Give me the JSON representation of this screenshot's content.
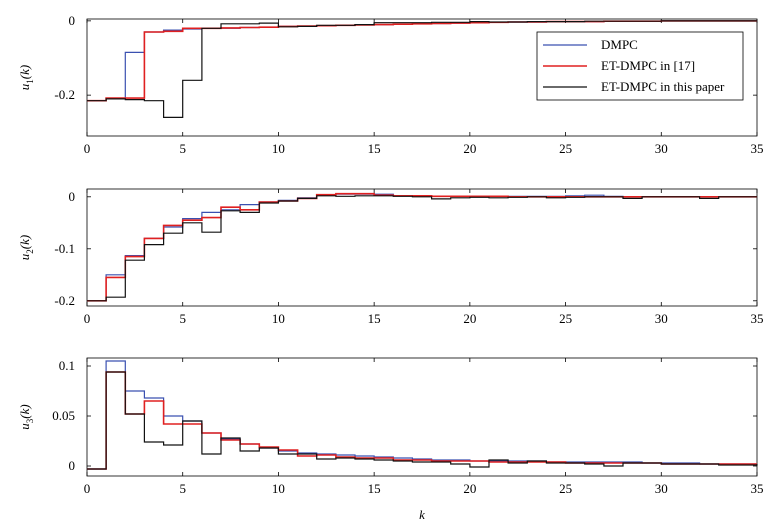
{
  "chart_data": [
    {
      "type": "line",
      "ylabel_main": "u",
      "ylabel_sub": "1",
      "ylabel_arg": "(k)",
      "xlim": [
        0,
        35
      ],
      "ylim": [
        -0.31,
        0.005
      ],
      "xticks": [
        "0",
        "5",
        "10",
        "15",
        "20",
        "25",
        "30",
        "35"
      ],
      "yticks": [
        {
          "v": 0,
          "label": "0"
        },
        {
          "v": -0.2,
          "label": "-0.2"
        }
      ],
      "legend": {
        "position": "top-right",
        "entries": [
          "DMPC",
          "ET-DMPC in [17]",
          "ET-DMPC in this paper"
        ]
      },
      "series": [
        {
          "name": "DMPC",
          "color": "#3a50b0",
          "step": true,
          "x": [
            0,
            1,
            2,
            3,
            4,
            5,
            6,
            7,
            8,
            9,
            10,
            11,
            12,
            13,
            14,
            15,
            16,
            17,
            18,
            19,
            20,
            21,
            22,
            23,
            24,
            25,
            26,
            27,
            28,
            29,
            30,
            31,
            32,
            33,
            34,
            35
          ],
          "y": [
            -0.215,
            -0.21,
            -0.085,
            -0.03,
            -0.025,
            -0.022,
            -0.02,
            -0.02,
            -0.018,
            -0.017,
            -0.015,
            -0.014,
            -0.013,
            -0.012,
            -0.011,
            -0.01,
            -0.009,
            -0.008,
            -0.007,
            -0.006,
            -0.005,
            -0.004,
            -0.003,
            -0.003,
            -0.002,
            -0.002,
            -0.002,
            -0.001,
            -0.001,
            -0.001,
            0,
            0,
            0,
            0,
            0,
            0
          ]
        },
        {
          "name": "ET-DMPC in [17]",
          "color": "#e02020",
          "step": true,
          "x": [
            0,
            1,
            2,
            3,
            4,
            5,
            6,
            7,
            8,
            9,
            10,
            11,
            12,
            13,
            14,
            15,
            16,
            17,
            18,
            19,
            20,
            21,
            22,
            23,
            24,
            25,
            26,
            27,
            28,
            29,
            30,
            31,
            32,
            33,
            34,
            35
          ],
          "y": [
            -0.215,
            -0.208,
            -0.208,
            -0.03,
            -0.028,
            -0.02,
            -0.02,
            -0.019,
            -0.018,
            -0.017,
            -0.015,
            -0.014,
            -0.013,
            -0.012,
            -0.011,
            -0.01,
            -0.009,
            -0.008,
            -0.007,
            -0.006,
            -0.005,
            -0.004,
            -0.003,
            -0.003,
            -0.002,
            -0.002,
            -0.002,
            -0.001,
            -0.001,
            -0.001,
            0,
            0,
            0,
            0,
            0,
            0
          ]
        },
        {
          "name": "ET-DMPC in this paper",
          "color": "#111111",
          "step": true,
          "x": [
            0,
            1,
            2,
            3,
            4,
            5,
            6,
            7,
            8,
            9,
            10,
            11,
            12,
            13,
            14,
            15,
            16,
            17,
            18,
            19,
            20,
            21,
            22,
            23,
            24,
            25,
            26,
            27,
            28,
            29,
            30,
            31,
            32,
            33,
            34,
            35
          ],
          "y": [
            -0.215,
            -0.21,
            -0.212,
            -0.215,
            -0.26,
            -0.16,
            -0.02,
            -0.008,
            -0.008,
            -0.006,
            -0.016,
            -0.015,
            -0.012,
            -0.012,
            -0.01,
            -0.005,
            -0.005,
            -0.005,
            -0.004,
            -0.004,
            -0.002,
            -0.003,
            -0.003,
            -0.002,
            -0.002,
            -0.002,
            -0.001,
            -0.001,
            -0.001,
            -0.001,
            0,
            0,
            0,
            0,
            0,
            0
          ]
        }
      ]
    },
    {
      "type": "line",
      "ylabel_main": "u",
      "ylabel_sub": "2",
      "ylabel_arg": "(k)",
      "xlim": [
        0,
        35
      ],
      "ylim": [
        -0.21,
        0.015
      ],
      "xticks": [
        "0",
        "5",
        "10",
        "15",
        "20",
        "25",
        "30",
        "35"
      ],
      "yticks": [
        {
          "v": 0,
          "label": "0"
        },
        {
          "v": -0.1,
          "label": "-0.1"
        },
        {
          "v": -0.2,
          "label": "-0.2"
        }
      ],
      "series": [
        {
          "name": "DMPC",
          "color": "#3a50b0",
          "step": true,
          "x": [
            0,
            1,
            2,
            3,
            4,
            5,
            6,
            7,
            8,
            9,
            10,
            11,
            12,
            13,
            14,
            15,
            16,
            17,
            18,
            19,
            20,
            21,
            22,
            23,
            24,
            25,
            26,
            27,
            28,
            29,
            30,
            31,
            32,
            33,
            34,
            35
          ],
          "y": [
            -0.2,
            -0.15,
            -0.113,
            -0.08,
            -0.058,
            -0.042,
            -0.03,
            -0.025,
            -0.015,
            -0.01,
            -0.007,
            -0.002,
            0.004,
            0.005,
            0.005,
            0.005,
            0.002,
            0.002,
            0.001,
            0.001,
            0.001,
            0.001,
            0.001,
            0.001,
            0.001,
            0.002,
            0.003,
            0.001,
            0,
            0,
            0,
            0,
            0,
            0,
            0,
            0
          ]
        },
        {
          "name": "ET-DMPC in [17]",
          "color": "#e02020",
          "step": true,
          "x": [
            0,
            1,
            2,
            3,
            4,
            5,
            6,
            7,
            8,
            9,
            10,
            11,
            12,
            13,
            14,
            15,
            16,
            17,
            18,
            19,
            20,
            21,
            22,
            23,
            24,
            25,
            26,
            27,
            28,
            29,
            30,
            31,
            32,
            33,
            34,
            35
          ],
          "y": [
            -0.2,
            -0.155,
            -0.115,
            -0.08,
            -0.055,
            -0.045,
            -0.04,
            -0.02,
            -0.025,
            -0.01,
            -0.008,
            -0.003,
            0.004,
            0.006,
            0.006,
            0.003,
            0.002,
            0.002,
            0.001,
            0.001,
            0.001,
            0.001,
            0,
            0,
            0,
            0,
            0,
            0,
            0,
            0,
            0,
            0,
            0,
            0,
            0,
            0
          ]
        },
        {
          "name": "ET-DMPC in this paper",
          "color": "#111111",
          "step": true,
          "x": [
            0,
            1,
            2,
            3,
            4,
            5,
            6,
            7,
            8,
            9,
            10,
            11,
            12,
            13,
            14,
            15,
            16,
            17,
            18,
            19,
            20,
            21,
            22,
            23,
            24,
            25,
            26,
            27,
            28,
            29,
            30,
            31,
            32,
            33,
            34,
            35
          ],
          "y": [
            -0.2,
            -0.193,
            -0.122,
            -0.092,
            -0.07,
            -0.05,
            -0.068,
            -0.027,
            -0.03,
            -0.012,
            -0.008,
            -0.003,
            0.002,
            0.001,
            0.002,
            0.002,
            0.001,
            0,
            -0.004,
            -0.002,
            -0.001,
            -0.002,
            -0.001,
            0,
            -0.002,
            -0.001,
            0,
            0,
            -0.003,
            0,
            0,
            0,
            -0.003,
            0,
            0,
            0
          ]
        }
      ]
    },
    {
      "type": "line",
      "ylabel_main": "u",
      "ylabel_sub": "3",
      "ylabel_arg": "(k)",
      "xlabel": "k",
      "xlim": [
        0,
        35
      ],
      "ylim": [
        -0.01,
        0.108
      ],
      "xticks": [
        "0",
        "5",
        "10",
        "15",
        "20",
        "25",
        "30",
        "35"
      ],
      "yticks": [
        {
          "v": 0.1,
          "label": "0.1"
        },
        {
          "v": 0.05,
          "label": "0.05"
        },
        {
          "v": 0,
          "label": "0"
        }
      ],
      "series": [
        {
          "name": "DMPC",
          "color": "#3a50b0",
          "step": true,
          "x": [
            0,
            1,
            2,
            3,
            4,
            5,
            6,
            7,
            8,
            9,
            10,
            11,
            12,
            13,
            14,
            15,
            16,
            17,
            18,
            19,
            20,
            21,
            22,
            23,
            24,
            25,
            26,
            27,
            28,
            29,
            30,
            31,
            32,
            33,
            34,
            35
          ],
          "y": [
            -0.003,
            0.105,
            0.075,
            0.068,
            0.05,
            0.045,
            0.033,
            0.027,
            0.022,
            0.018,
            0.015,
            0.013,
            0.012,
            0.011,
            0.01,
            0.009,
            0.008,
            0.007,
            0.006,
            0.006,
            0.005,
            0.005,
            0.005,
            0.005,
            0.004,
            0.004,
            0.004,
            0.004,
            0.004,
            0.003,
            0.003,
            0.003,
            0.002,
            0.002,
            0.002,
            0.002
          ]
        },
        {
          "name": "ET-DMPC in [17]",
          "color": "#e02020",
          "step": true,
          "x": [
            0,
            1,
            2,
            3,
            4,
            5,
            6,
            7,
            8,
            9,
            10,
            11,
            12,
            13,
            14,
            15,
            16,
            17,
            18,
            19,
            20,
            21,
            22,
            23,
            24,
            25,
            26,
            27,
            28,
            29,
            30,
            31,
            32,
            33,
            34,
            35
          ],
          "y": [
            -0.003,
            0.094,
            0.052,
            0.065,
            0.042,
            0.042,
            0.033,
            0.026,
            0.022,
            0.019,
            0.016,
            0.01,
            0.011,
            0.009,
            0.008,
            0.008,
            0.006,
            0.006,
            0.005,
            0.005,
            0.005,
            0.004,
            0.004,
            0.004,
            0.004,
            0.003,
            0.003,
            0.003,
            0.003,
            0.003,
            0.002,
            0.002,
            0.002,
            0.002,
            0.002,
            0.002
          ]
        },
        {
          "name": "ET-DMPC in this paper",
          "color": "#111111",
          "step": true,
          "x": [
            0,
            1,
            2,
            3,
            4,
            5,
            6,
            7,
            8,
            9,
            10,
            11,
            12,
            13,
            14,
            15,
            16,
            17,
            18,
            19,
            20,
            21,
            22,
            23,
            24,
            25,
            26,
            27,
            28,
            29,
            30,
            31,
            32,
            33,
            34,
            35
          ],
          "y": [
            -0.003,
            0.094,
            0.052,
            0.024,
            0.021,
            0.045,
            0.012,
            0.028,
            0.015,
            0.018,
            0.012,
            0.012,
            0.007,
            0.008,
            0.007,
            0.006,
            0.005,
            0.004,
            0.004,
            0.002,
            -0.001,
            0.006,
            0.003,
            0.005,
            0.003,
            0.003,
            0.002,
            0,
            0.003,
            0.003,
            0.002,
            0.002,
            0.002,
            0.001,
            0.001,
            0.002
          ]
        }
      ]
    }
  ]
}
